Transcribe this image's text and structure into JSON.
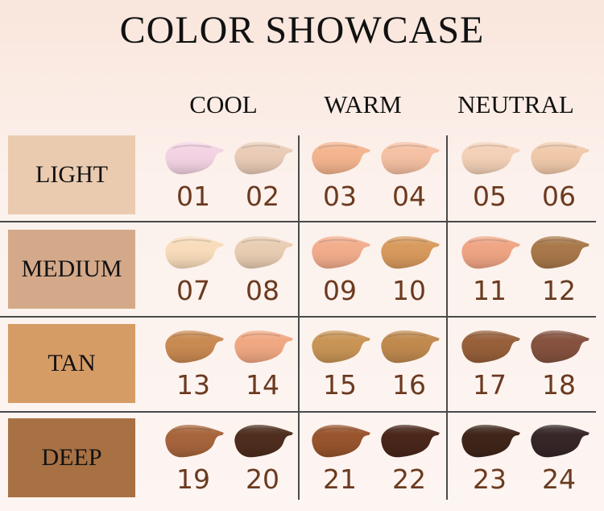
{
  "title": "COLOR SHOWCASE",
  "columns": [
    "COOL",
    "WARM",
    "NEUTRAL"
  ],
  "rows": [
    {
      "label": "LIGHT",
      "color": "#ebcbb0",
      "shades": [
        {
          "num": "01",
          "color": "#f3d3e3"
        },
        {
          "num": "02",
          "color": "#e9cbb6"
        },
        {
          "num": "03",
          "color": "#f3b48e"
        },
        {
          "num": "04",
          "color": "#f5c0a3"
        },
        {
          "num": "05",
          "color": "#f3d0b7"
        },
        {
          "num": "06",
          "color": "#f0c9aa"
        }
      ]
    },
    {
      "label": "MEDIUM",
      "color": "#d4a989",
      "shades": [
        {
          "num": "07",
          "color": "#f8dcbb"
        },
        {
          "num": "08",
          "color": "#e8cdb2"
        },
        {
          "num": "09",
          "color": "#f2ad8c"
        },
        {
          "num": "10",
          "color": "#d89a5d"
        },
        {
          "num": "11",
          "color": "#efa584"
        },
        {
          "num": "12",
          "color": "#a8784a"
        }
      ]
    },
    {
      "label": "TAN",
      "color": "#d59c66",
      "shades": [
        {
          "num": "13",
          "color": "#c98a52"
        },
        {
          "num": "14",
          "color": "#f0a883"
        },
        {
          "num": "15",
          "color": "#c99556"
        },
        {
          "num": "16",
          "color": "#c08a4f"
        },
        {
          "num": "17",
          "color": "#97603a"
        },
        {
          "num": "18",
          "color": "#85523f"
        }
      ]
    },
    {
      "label": "DEEP",
      "color": "#a87144",
      "shades": [
        {
          "num": "19",
          "color": "#a7653c"
        },
        {
          "num": "20",
          "color": "#4e2d1e"
        },
        {
          "num": "21",
          "color": "#98542d"
        },
        {
          "num": "22",
          "color": "#4a261a"
        },
        {
          "num": "23",
          "color": "#3f2519"
        },
        {
          "num": "24",
          "color": "#362628"
        }
      ]
    }
  ]
}
